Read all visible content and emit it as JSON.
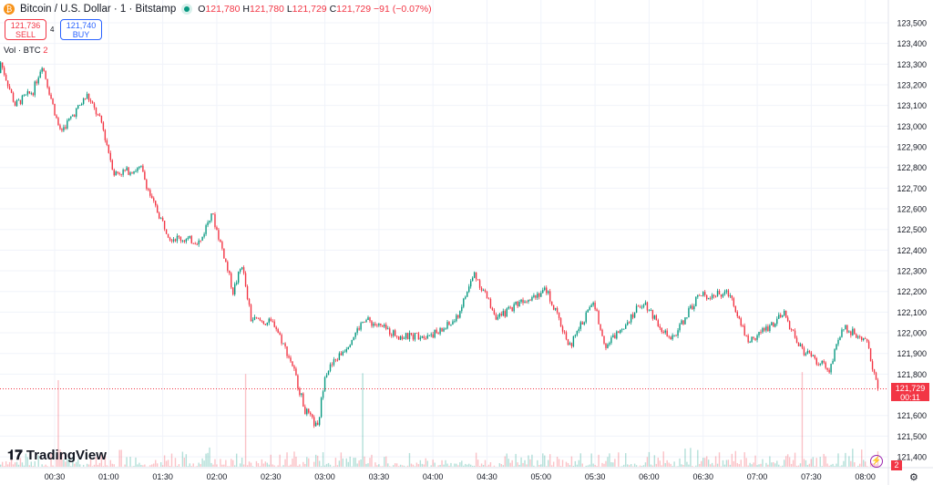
{
  "header": {
    "coin_icon": "bitcoin-icon",
    "title": "Bitcoin / U.S. Dollar · 1 · Bitstamp",
    "o_label": "O",
    "o": "121,780",
    "h_label": "H",
    "h": "121,780",
    "l_label": "L",
    "l": "121,729",
    "c_label": "C",
    "c": "121,729",
    "change": "−91 (−0.07%)"
  },
  "trade": {
    "sell_price": "121,736",
    "sell_label": "SELL",
    "spread": "4",
    "buy_price": "121,740",
    "buy_label": "BUY"
  },
  "volume": {
    "label": "Vol · BTC",
    "value": "2"
  },
  "brand": "TradingView",
  "price_label": {
    "price": "121,729",
    "countdown": "00:11"
  },
  "vol_badge": "2",
  "colors": {
    "up": "#089981",
    "down": "#f23645",
    "grid": "#f0f3fa"
  },
  "chart_data": {
    "type": "candlestick",
    "interval_minutes": 1,
    "y_ticks": [
      "123,500",
      "123,400",
      "123,300",
      "123,200",
      "123,100",
      "123,000",
      "122,900",
      "122,800",
      "122,700",
      "122,600",
      "122,500",
      "122,400",
      "122,300",
      "122,200",
      "122,100",
      "122,000",
      "121,900",
      "121,800",
      "121,600",
      "121,500",
      "121,400"
    ],
    "ylim": [
      121350,
      123580
    ],
    "x_ticks": [
      "00:30",
      "01:00",
      "01:30",
      "02:00",
      "02:30",
      "03:00",
      "03:30",
      "04:00",
      "04:30",
      "05:00",
      "05:30",
      "06:00",
      "06:30",
      "07:00",
      "07:30",
      "08:00"
    ],
    "close_path_minutes": [
      2,
      8,
      18,
      23,
      33,
      48,
      56,
      63,
      78,
      84,
      94,
      111,
      117,
      124,
      129,
      134,
      139,
      152,
      162,
      169,
      176,
      180,
      192,
      202,
      223,
      243,
      253,
      263,
      276,
      288,
      303,
      316,
      329,
      336,
      357,
      372,
      387,
      405,
      415,
      435,
      445,
      460,
      468,
      481,
      487
    ],
    "close_path_prices": [
      123257,
      123103,
      123170,
      123300,
      122970,
      123147,
      123015,
      122772,
      122794,
      122640,
      122463,
      122441,
      122587,
      122375,
      122199,
      122331,
      122066,
      122044,
      121845,
      121625,
      121537,
      121802,
      121934,
      122066,
      121978,
      122000,
      122066,
      122287,
      122066,
      122154,
      122207,
      121934,
      122154,
      121934,
      122154,
      121956,
      122177,
      122190,
      121956,
      122088,
      121912,
      121824,
      122030,
      121956,
      121729
    ],
    "last_price": 121729
  }
}
